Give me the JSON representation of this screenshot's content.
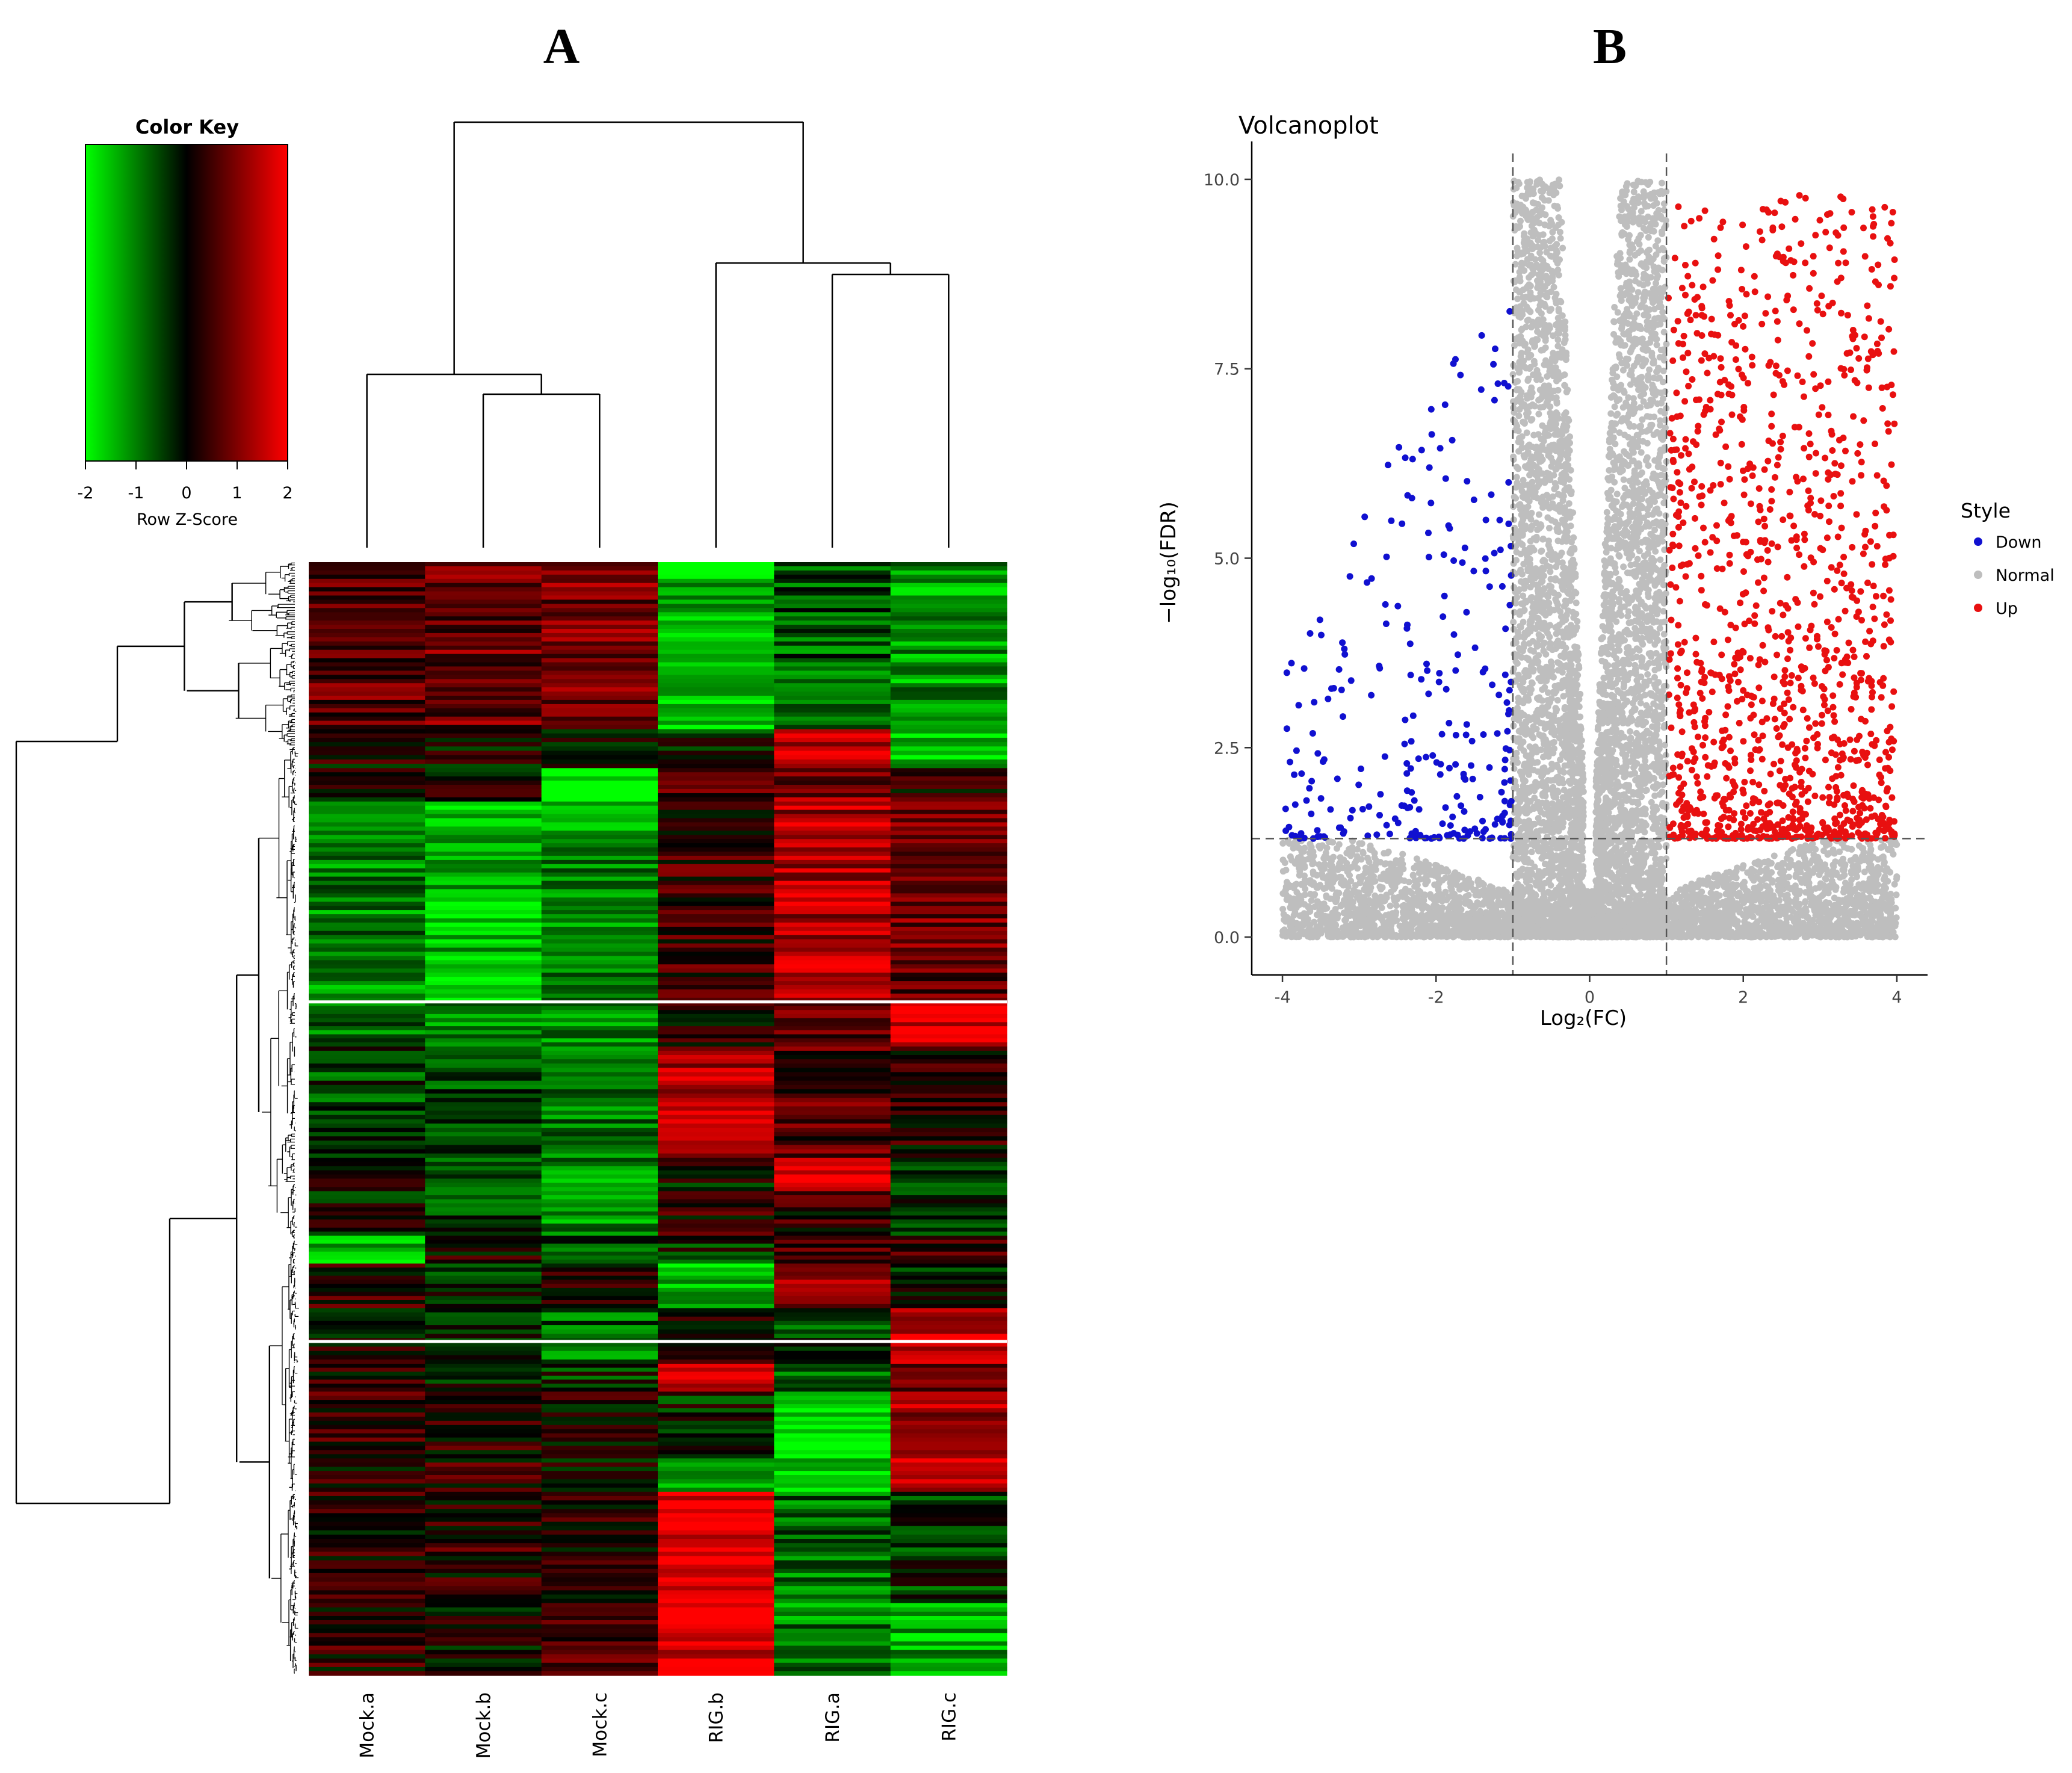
{
  "panel_labels": {
    "a": "A",
    "b": "B"
  },
  "chart_data": [
    {
      "type": "heatmap",
      "panel": "A",
      "color_key": {
        "title": "Color Key",
        "xlabel": "Row Z-Score",
        "ticks": [
          "-2",
          "-1",
          "0",
          "1",
          "2"
        ],
        "tick_values": [
          -2,
          -1,
          0,
          1,
          2
        ],
        "range": [
          -2,
          2
        ],
        "colors": [
          "#00ff00",
          "#000000",
          "#ff0000"
        ]
      },
      "columns": [
        "Mock.a",
        "Mock.b",
        "Mock.c",
        "RIG.b",
        "RIG.a",
        "RIG.c"
      ],
      "column_dendrogram": {
        "order": [
          "Mock.a",
          "Mock.b",
          "Mock.c",
          "RIG.b",
          "RIG.a",
          "RIG.c"
        ],
        "merge_heights": [
          0.3,
          0.45,
          0.8,
          0.97,
          2.0
        ]
      },
      "row_blocks": [
        {
          "rows": 300,
          "z": [
            0.7,
            0.8,
            0.9,
            -1.4,
            -0.7,
            -1.2
          ]
        },
        {
          "rows": 70,
          "z": [
            0.1,
            0.0,
            -0.2,
            -0.3,
            1.5,
            -1.6
          ]
        },
        {
          "rows": 60,
          "z": [
            0.0,
            0.1,
            -1.8,
            0.5,
            1.0,
            0.3
          ]
        },
        {
          "rows": 360,
          "z": [
            -1.0,
            -1.5,
            -1.1,
            0.4,
            1.3,
            0.8
          ]
        },
        {
          "rows": 80,
          "z": [
            -0.9,
            -1.1,
            -1.0,
            0.2,
            0.6,
            1.7
          ]
        },
        {
          "rows": 200,
          "z": [
            -0.5,
            -0.6,
            -0.9,
            1.4,
            0.6,
            0.2
          ]
        },
        {
          "rows": 60,
          "z": [
            0.0,
            -0.4,
            -1.1,
            0.0,
            1.8,
            -0.6
          ]
        },
        {
          "rows": 80,
          "z": [
            -0.1,
            -0.5,
            -1.2,
            0.3,
            0.3,
            -0.3
          ]
        },
        {
          "rows": 50,
          "z": [
            -1.6,
            0.1,
            -0.7,
            -0.3,
            0.7,
            0.4
          ]
        },
        {
          "rows": 80,
          "z": [
            0.3,
            -0.2,
            0.1,
            -1.6,
            1.2,
            -0.2
          ]
        },
        {
          "rows": 100,
          "z": [
            0.1,
            -0.1,
            -0.8,
            0.1,
            -0.5,
            1.6
          ]
        },
        {
          "rows": 50,
          "z": [
            0.2,
            -0.1,
            -0.3,
            1.3,
            -0.6,
            1.0
          ]
        },
        {
          "rows": 120,
          "z": [
            0.3,
            0.2,
            0.2,
            -0.2,
            -1.7,
            1.2
          ]
        },
        {
          "rows": 60,
          "z": [
            0.2,
            0.3,
            0.1,
            -1.4,
            -1.4,
            1.3
          ]
        },
        {
          "rows": 200,
          "z": [
            0.2,
            0.3,
            0.3,
            1.9,
            -0.8,
            -0.4
          ]
        },
        {
          "rows": 130,
          "z": [
            0.3,
            0.1,
            0.4,
            1.7,
            -1.0,
            -1.3
          ]
        }
      ],
      "row_separators_after_rows": [
        790,
        1400
      ]
    },
    {
      "type": "scatter",
      "panel": "B",
      "title": "Volcanoplot",
      "xlabel": "Log₂(FC)",
      "ylabel": "−log₁₀(FDR)",
      "xlim": [
        -4.4,
        4.4
      ],
      "ylim": [
        -0.5,
        10.5
      ],
      "xticks": [
        -4,
        -2,
        0,
        2,
        4
      ],
      "xtick_labels": [
        "-4",
        "-2",
        "0",
        "2",
        "4"
      ],
      "yticks": [
        0,
        2.5,
        5,
        7.5,
        10
      ],
      "ytick_labels": [
        "0.0",
        "2.5",
        "5.0",
        "7.5",
        "10.0"
      ],
      "thresholds": {
        "log2fc": [
          -1,
          1
        ],
        "neg_log10_fdr": 1.3
      },
      "legend": {
        "title": "Style",
        "placement": "right",
        "entries": [
          {
            "name": "Down",
            "color": "#1010d0"
          },
          {
            "name": "Normal",
            "color": "#bebebe"
          },
          {
            "name": "Up",
            "color": "#e81010"
          }
        ]
      },
      "series": [
        {
          "name": "Normal",
          "count": 9000,
          "color": "#bebebe"
        },
        {
          "name": "Down",
          "count": 260,
          "color": "#1010d0"
        },
        {
          "name": "Up",
          "count": 1200,
          "color": "#e81010"
        }
      ],
      "seed": 7
    }
  ]
}
